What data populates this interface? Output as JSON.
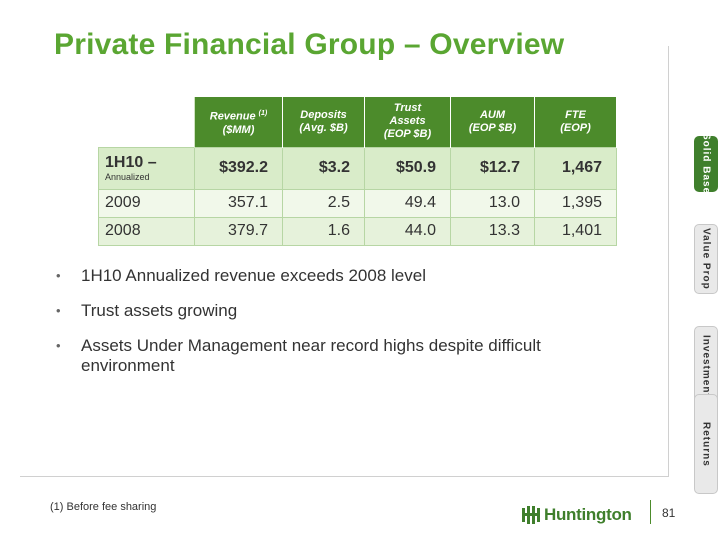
{
  "title": "Private Financial Group – Overview",
  "table": {
    "headers": [
      {
        "line1": "Revenue",
        "sup": "(1)",
        "line2": "($MM)"
      },
      {
        "line1": "Deposits",
        "line2": "(Avg. $B)"
      },
      {
        "line1": "Trust Assets",
        "line2": "(EOP $B)"
      },
      {
        "line1": "AUM",
        "line2": "(EOP $B)"
      },
      {
        "line1": "FTE",
        "line2": "(EOP)"
      }
    ],
    "rows": [
      {
        "label": "1H10 –",
        "sub": "Annualized",
        "values": [
          "$392.2",
          "$3.2",
          "$50.9",
          "$12.7",
          "1,467"
        ]
      },
      {
        "label": "2009",
        "values": [
          "357.1",
          "2.5",
          "49.4",
          "13.0",
          "1,395"
        ]
      },
      {
        "label": "2008",
        "values": [
          "379.7",
          "1.6",
          "44.0",
          "13.3",
          "1,401"
        ]
      }
    ]
  },
  "bullets": [
    "1H10 Annualized revenue exceeds 2008 level",
    "Trust assets growing",
    "Assets Under Management near record highs despite difficult environment"
  ],
  "bullet_glyph": "•",
  "tabs": [
    {
      "label": "Solid Base",
      "active": true
    },
    {
      "label": "Value Prop",
      "active": false
    },
    {
      "label": "Investments",
      "active": false
    },
    {
      "label": "Returns",
      "active": false
    }
  ],
  "footnote": "(1) Before fee sharing",
  "logo": {
    "text": "Huntington",
    "icon": "huntington-logo-icon",
    "color": "#3f7f2c"
  },
  "page_number": "81",
  "colors": {
    "title": "#5aa632",
    "header_bg": "#4c8b2b"
  }
}
